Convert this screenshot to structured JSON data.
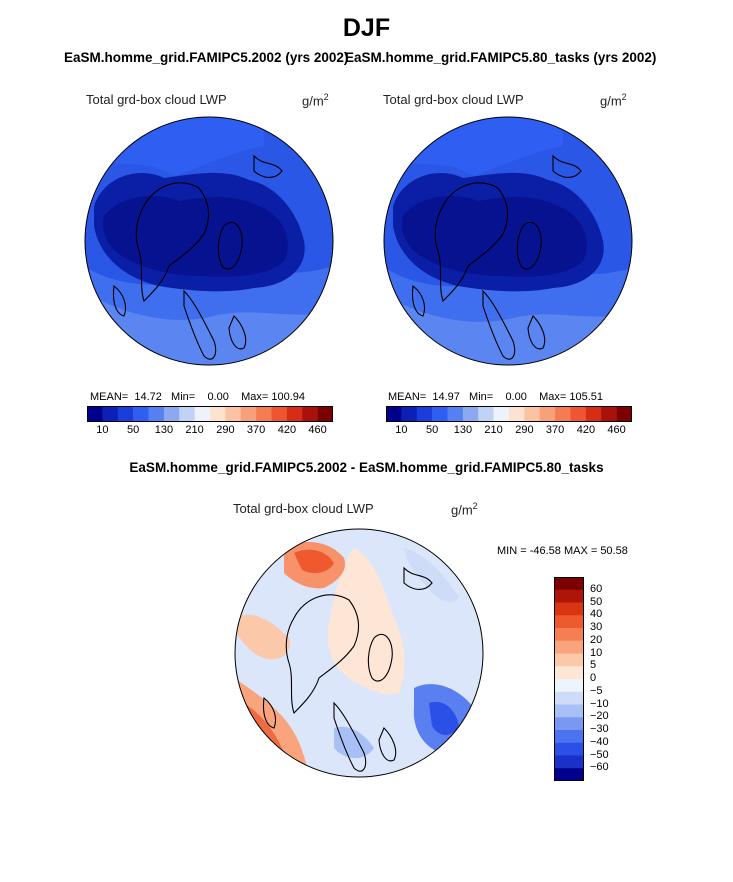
{
  "title": "DJF",
  "panel_left": {
    "title": "EaSM.homme_grid.FAMIPC5.2002 (yrs 2002)",
    "label": "Total grd-box cloud LWP",
    "units": "g/m",
    "units_sup": "2",
    "mean_label": "MEAN=",
    "mean": "14.72",
    "min_label": "Min=",
    "min": "0.00",
    "max_label": "Max=",
    "max": "100.94"
  },
  "panel_right": {
    "title": "EaSM.homme_grid.FAMIPC5.80_tasks (yrs 2002)",
    "label": "Total grd-box cloud LWP",
    "units": "g/m",
    "units_sup": "2",
    "mean_label": "MEAN=",
    "mean": "14.97",
    "min_label": "Min=",
    "min": "0.00",
    "max_label": "Max=",
    "max": "105.51"
  },
  "panel_diff": {
    "title": "EaSM.homme_grid.FAMIPC5.2002 - EaSM.homme_grid.FAMIPC5.80_tasks",
    "label": "Total grd-box cloud LWP",
    "units": "g/m",
    "units_sup": "2",
    "minmax": "MIN = -46.58 MAX =  50.58"
  },
  "colors": {
    "abs_scale": [
      "#00008c",
      "#0d20b5",
      "#1a3ddb",
      "#2f5ff2",
      "#5580f2",
      "#8ca8f0",
      "#c0d2f5",
      "#eef3fb",
      "#fde2d0",
      "#fbc2a4",
      "#f9a07a",
      "#f57b52",
      "#ee5530",
      "#d62d14",
      "#a8120a",
      "#7d0000"
    ],
    "diff_scale": [
      "#00008c",
      "#1a30c6",
      "#2a50e8",
      "#4b72f0",
      "#7a98f2",
      "#a8c0f5",
      "#cfdcf8",
      "#eef4fc",
      "#fde6d6",
      "#fbc8aa",
      "#f9a47c",
      "#f57f52",
      "#ee5a2e",
      "#d93514",
      "#ad1508",
      "#7d0000"
    ],
    "land": "#000000"
  },
  "chart_data": [
    {
      "type": "heatmap",
      "title": "EaSM.homme_grid.FAMIPC5.2002 (yrs 2002)",
      "variable": "Total grd-box cloud LWP",
      "units": "g/m2",
      "projection": "north polar stereographic",
      "stats": {
        "mean": 14.72,
        "min": 0.0,
        "max": 100.94
      },
      "colorbar_ticks": [
        "10",
        "50",
        "130",
        "210",
        "290",
        "370",
        "420",
        "460"
      ]
    },
    {
      "type": "heatmap",
      "title": "EaSM.homme_grid.FAMIPC5.80_tasks (yrs 2002)",
      "variable": "Total grd-box cloud LWP",
      "units": "g/m2",
      "projection": "north polar stereographic",
      "stats": {
        "mean": 14.97,
        "min": 0.0,
        "max": 105.51
      },
      "colorbar_ticks": [
        "10",
        "50",
        "130",
        "210",
        "290",
        "370",
        "420",
        "460"
      ]
    },
    {
      "type": "heatmap",
      "title": "EaSM.homme_grid.FAMIPC5.2002 - EaSM.homme_grid.FAMIPC5.80_tasks",
      "variable": "Total grd-box cloud LWP",
      "units": "g/m2",
      "projection": "north polar stereographic",
      "stats": {
        "min": -46.58,
        "max": 50.58
      },
      "colorbar_ticks": [
        "60",
        "50",
        "40",
        "30",
        "20",
        "10",
        "5",
        "0",
        "−5",
        "−10",
        "−20",
        "−30",
        "−40",
        "−50",
        "−60"
      ]
    }
  ]
}
